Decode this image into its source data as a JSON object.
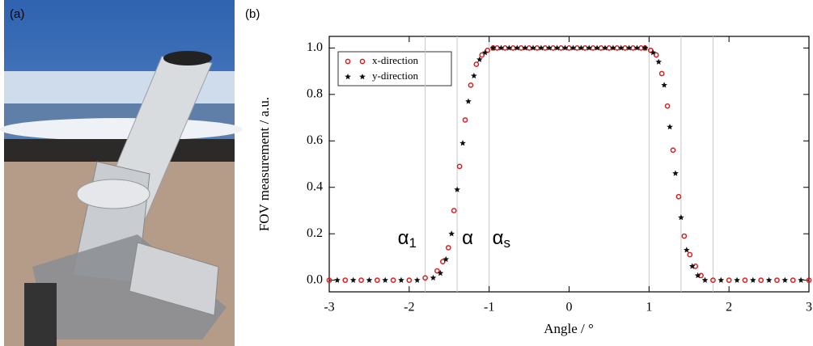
{
  "panels": {
    "a": "(a)",
    "b": "(b)"
  },
  "chart_data": {
    "type": "scatter",
    "xlabel": "Angle / °",
    "ylabel": "FOV measurement / a.u.",
    "xlim": [
      -3,
      3
    ],
    "xticks": [
      -3,
      -2,
      -1,
      0,
      1,
      2,
      3
    ],
    "ylim": [
      -0.05,
      1.05
    ],
    "yticks": [
      {
        "value": 0,
        "label": "0.0"
      },
      0.2,
      0.4,
      0.6,
      0.8,
      {
        "value": 1,
        "label": "1.0"
      }
    ],
    "vlines": [
      -1.8,
      -1.4,
      -1.0,
      1.0,
      1.4,
      1.8
    ],
    "annotations": [
      {
        "text": "α",
        "subscript": "1"
      },
      {
        "text": "α"
      },
      {
        "text": "α",
        "subscript": "s"
      }
    ],
    "legend": "upper left",
    "series": [
      {
        "name": "x-direction",
        "color": "#d62020",
        "marker": "circle",
        "x": [
          -3.0,
          -2.8,
          -2.6,
          -2.4,
          -2.2,
          -2.0,
          -1.8,
          -1.65,
          -1.58,
          -1.51,
          -1.44,
          -1.37,
          -1.3,
          -1.23,
          -1.16,
          -1.09,
          -1.02,
          -0.95,
          -0.9,
          -0.8,
          -0.7,
          -0.6,
          -0.5,
          -0.4,
          -0.3,
          -0.2,
          -0.1,
          0,
          0.1,
          0.2,
          0.3,
          0.4,
          0.5,
          0.6,
          0.7,
          0.8,
          0.9,
          0.95,
          1.02,
          1.09,
          1.16,
          1.23,
          1.3,
          1.37,
          1.44,
          1.51,
          1.58,
          1.65,
          1.8,
          2.0,
          2.2,
          2.4,
          2.6,
          2.8,
          3.0
        ],
        "values": [
          0,
          0,
          0,
          0,
          0,
          0,
          0.01,
          0.04,
          0.08,
          0.14,
          0.3,
          0.49,
          0.69,
          0.84,
          0.93,
          0.97,
          0.99,
          1.0,
          1.0,
          1.0,
          1.0,
          1.0,
          1.0,
          1.0,
          1.0,
          1.0,
          1.0,
          1.0,
          1.0,
          1.0,
          1.0,
          1.0,
          1.0,
          1.0,
          1.0,
          1.0,
          1.0,
          1.0,
          0.99,
          0.97,
          0.89,
          0.75,
          0.56,
          0.36,
          0.19,
          0.11,
          0.06,
          0.02,
          0,
          0,
          0,
          0,
          0,
          0,
          0
        ]
      },
      {
        "name": "y-direction",
        "color": "#111111",
        "marker": "star",
        "x": [
          -2.9,
          -2.7,
          -2.5,
          -2.3,
          -2.1,
          -1.9,
          -1.7,
          -1.61,
          -1.54,
          -1.47,
          -1.4,
          -1.33,
          -1.26,
          -1.19,
          -1.12,
          -1.05,
          -0.95,
          -0.85,
          -0.75,
          -0.65,
          -0.55,
          -0.45,
          -0.35,
          -0.25,
          -0.15,
          -0.05,
          0.05,
          0.15,
          0.25,
          0.35,
          0.45,
          0.55,
          0.65,
          0.75,
          0.85,
          0.95,
          1.05,
          1.12,
          1.19,
          1.26,
          1.33,
          1.4,
          1.47,
          1.54,
          1.61,
          1.7,
          1.9,
          2.1,
          2.3,
          2.5,
          2.7,
          2.9
        ],
        "values": [
          0,
          0,
          0,
          0,
          0,
          0,
          0.01,
          0.03,
          0.09,
          0.2,
          0.39,
          0.59,
          0.77,
          0.88,
          0.95,
          0.98,
          1.0,
          1.0,
          1.0,
          1.0,
          1.0,
          1.0,
          1.0,
          1.0,
          1.0,
          1.0,
          1.0,
          1.0,
          1.0,
          1.0,
          1.0,
          1.0,
          1.0,
          1.0,
          1.0,
          1.0,
          0.98,
          0.94,
          0.84,
          0.66,
          0.46,
          0.27,
          0.13,
          0.06,
          0.02,
          0,
          0,
          0,
          0,
          0,
          0,
          0
        ]
      }
    ]
  }
}
